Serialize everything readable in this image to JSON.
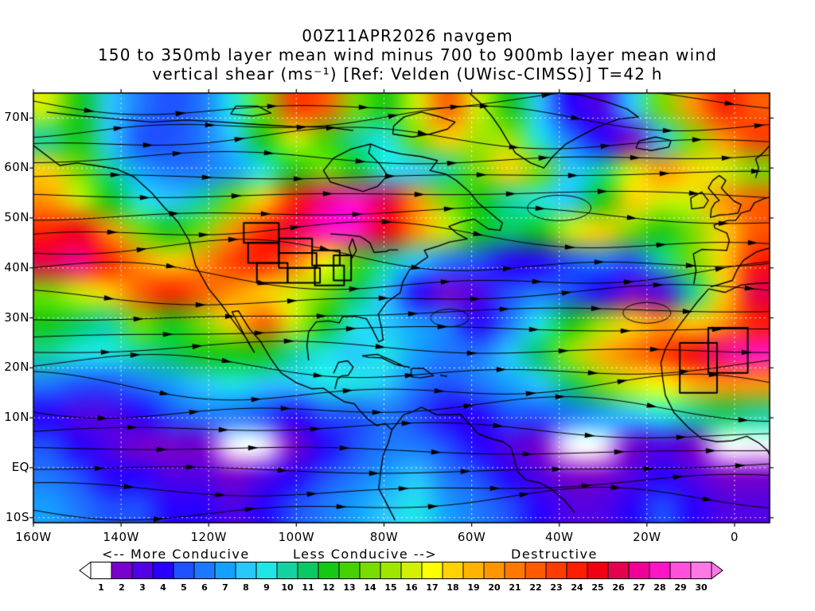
{
  "title": {
    "line1": "00Z11APR2026 navgem",
    "line2": "150 to 350mb layer mean wind minus 700 to 900mb layer mean wind",
    "line3": "vertical shear (ms⁻¹) [Ref: Velden (UWisc-CIMSS)] T=42 h"
  },
  "legend": {
    "more_conducive": "<-- More Conducive",
    "less_conducive": "Less Conducive -->",
    "destructive": "Destructive"
  },
  "chart_data": {
    "type": "heatmap",
    "field": "150-350mb minus 700-900mb layer mean wind vertical shear",
    "units": "ms⁻¹",
    "model": "navgem",
    "valid_time": "00Z11APR2026",
    "forecast_hour": "T=42 h",
    "lon_range": [
      -160,
      8
    ],
    "lat_range": [
      -11,
      75
    ],
    "axes": {
      "lat_labels": [
        "70N",
        "60N",
        "50N",
        "40N",
        "30N",
        "20N",
        "10N",
        "EQ",
        "10S"
      ],
      "lat_values": [
        70,
        60,
        50,
        40,
        30,
        20,
        10,
        0,
        -10
      ],
      "lon_labels": [
        "160W",
        "140W",
        "120W",
        "100W",
        "80W",
        "60W",
        "40W",
        "20W",
        "0"
      ],
      "lon_values": [
        -160,
        -140,
        -120,
        -100,
        -80,
        -60,
        -40,
        -20,
        0
      ]
    },
    "colorbar": {
      "values": [
        1,
        2,
        3,
        4,
        5,
        6,
        7,
        8,
        9,
        10,
        11,
        12,
        13,
        14,
        15,
        16,
        17,
        18,
        19,
        20,
        21,
        22,
        23,
        24,
        25,
        26,
        27,
        28,
        29,
        30
      ],
      "colors": [
        "#FFFFFF",
        "#7A00CC",
        "#5200E6",
        "#2800FF",
        "#1E50FF",
        "#1E78FF",
        "#14A0FF",
        "#28C8FF",
        "#1EE6E6",
        "#14D2A0",
        "#0AC864",
        "#14C814",
        "#46D200",
        "#78DC00",
        "#A0E600",
        "#D2F000",
        "#FFFF00",
        "#FFD200",
        "#FFB400",
        "#FF9600",
        "#FF7800",
        "#FF5A00",
        "#FF3C00",
        "#FF1E00",
        "#F00014",
        "#E60050",
        "#F00096",
        "#FF14C8",
        "#FF50DC",
        "#FF78E6"
      ],
      "left_arrow_color": "#FFFFFF",
      "right_arrow_color": "#FF78E6"
    },
    "grid_lons": [
      -156.5,
      -149.5,
      -142.5,
      -135.5,
      -128.5,
      -121.5,
      -114.5,
      -107.5,
      -100.5,
      -93.5,
      -86.5,
      -79.5,
      -72.5,
      -65.5,
      -58.5,
      -51.5,
      -44.5,
      -37.5,
      -30.5,
      -23.5,
      -16.5,
      -9.5,
      -2.5,
      4.5
    ],
    "grid_lats": [
      71.9,
      65.8,
      59.6,
      53.5,
      47.4,
      41.2,
      35.1,
      28.9,
      22.8,
      16.6,
      10.5,
      4.4,
      -1.8,
      -7.9
    ],
    "grid": [
      [
        16,
        12,
        8,
        6,
        5,
        6,
        9,
        14,
        23,
        22,
        14,
        12,
        16,
        22,
        16,
        12,
        8,
        4,
        3,
        8,
        14,
        20,
        24,
        22
      ],
      [
        10,
        12,
        8,
        5,
        5,
        6,
        8,
        12,
        16,
        13,
        10,
        9,
        14,
        18,
        15,
        15,
        9,
        6,
        4,
        2,
        8,
        14,
        20,
        23
      ],
      [
        18,
        14,
        10,
        7,
        6,
        6,
        7,
        9,
        12,
        14,
        12,
        9,
        8,
        10,
        14,
        18,
        14,
        8,
        10,
        16,
        20,
        18,
        16,
        14
      ],
      [
        20,
        16,
        12,
        9,
        8,
        10,
        14,
        18,
        24,
        27,
        28,
        26,
        20,
        14,
        12,
        10,
        9,
        8,
        12,
        18,
        16,
        16,
        20,
        22
      ],
      [
        24,
        25,
        20,
        14,
        12,
        14,
        20,
        24,
        26,
        28,
        28,
        25,
        20,
        16,
        12,
        11,
        12,
        16,
        18,
        14,
        12,
        14,
        18,
        22
      ],
      [
        26,
        27,
        24,
        20,
        18,
        20,
        23,
        24,
        21,
        17,
        13,
        10,
        8,
        6,
        5,
        4,
        4,
        5,
        6,
        5,
        10,
        14,
        18,
        24
      ],
      [
        14,
        16,
        18,
        22,
        24,
        22,
        20,
        18,
        16,
        14,
        11,
        8,
        4,
        2,
        3,
        5,
        6,
        5,
        4,
        2,
        3,
        10,
        18,
        26
      ],
      [
        12,
        11,
        10,
        14,
        12,
        14,
        18,
        22,
        16,
        12,
        9,
        8,
        7,
        6,
        4,
        6,
        9,
        12,
        15,
        18,
        20,
        18,
        20,
        24
      ],
      [
        10,
        9,
        9,
        10,
        11,
        12,
        12,
        12,
        10,
        9,
        8,
        9,
        7,
        6,
        6,
        8,
        11,
        15,
        19,
        21,
        23,
        25,
        27,
        28
      ],
      [
        6,
        5,
        5,
        6,
        7,
        8,
        9,
        8,
        8,
        9,
        9,
        8,
        6,
        5,
        6,
        7,
        8,
        11,
        14,
        16,
        17,
        19,
        20,
        20
      ],
      [
        4,
        3,
        3,
        4,
        5,
        6,
        6,
        5,
        4,
        5,
        5,
        6,
        5,
        4,
        4,
        5,
        5,
        6,
        7,
        8,
        9,
        10,
        11,
        10
      ],
      [
        5,
        4,
        3,
        2,
        2,
        2,
        1,
        1,
        2,
        4,
        5,
        6,
        6,
        5,
        4,
        3,
        2,
        1,
        1,
        2,
        3,
        2,
        1,
        1
      ],
      [
        6,
        5,
        4,
        4,
        3,
        3,
        2,
        3,
        4,
        5,
        6,
        7,
        8,
        6,
        5,
        4,
        3,
        2,
        2,
        3,
        4,
        3,
        2,
        2
      ],
      [
        7,
        6,
        5,
        5,
        4,
        4,
        3,
        4,
        5,
        6,
        7,
        8,
        9,
        7,
        6,
        5,
        4,
        3,
        3,
        4,
        5,
        4,
        3,
        3
      ]
    ]
  }
}
